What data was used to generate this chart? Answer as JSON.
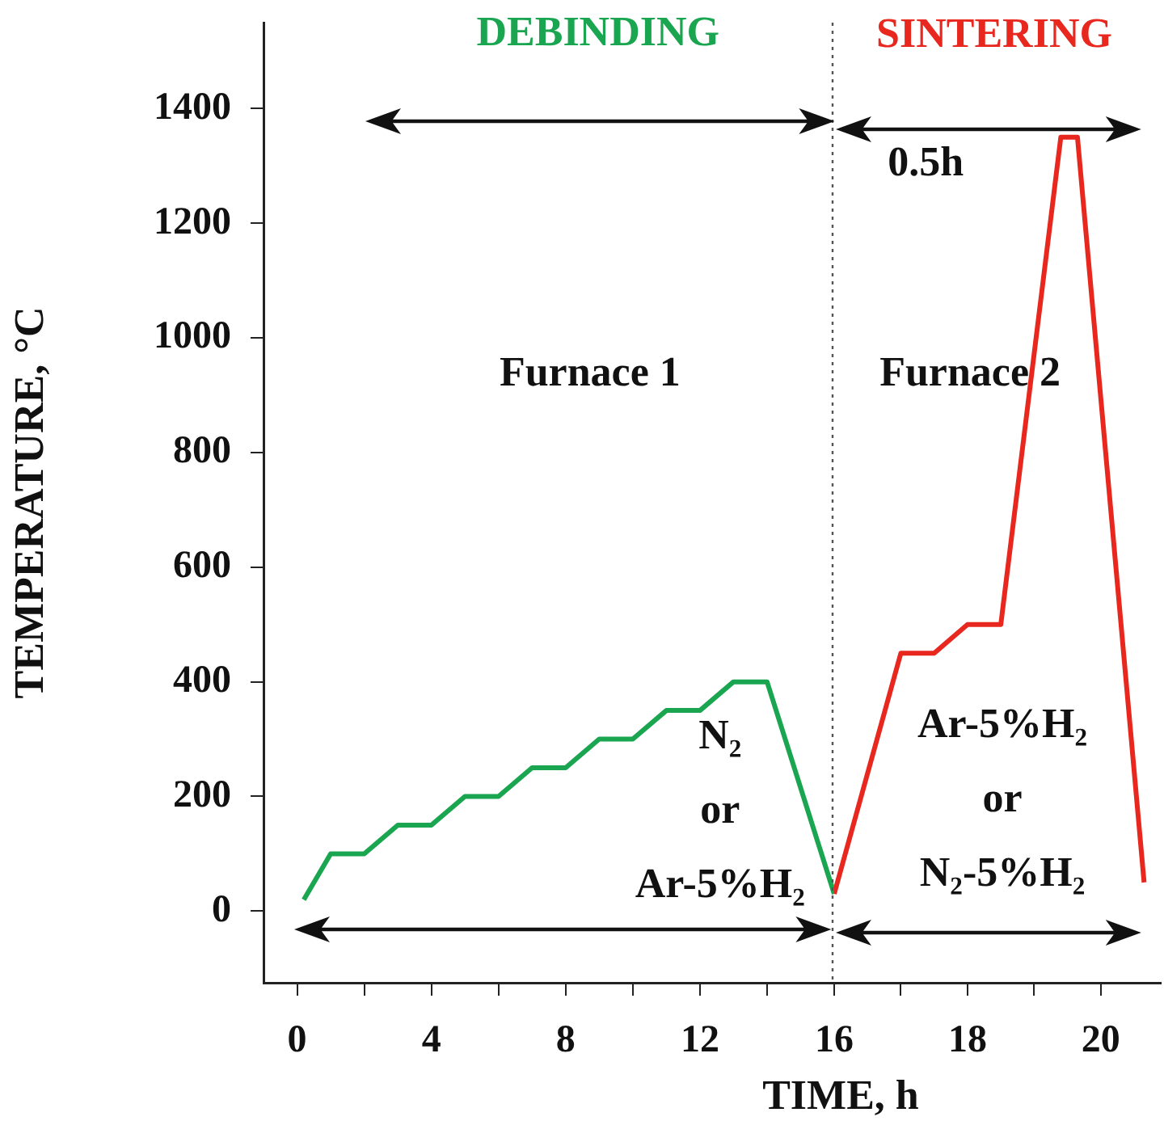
{
  "chart_data": [
    {
      "type": "line",
      "xlabel": "TIME, h",
      "ylabel": "TEMPERATURE, °C",
      "xlim": [
        -1,
        16
      ],
      "ylim": [
        -125,
        1550
      ],
      "xticks": [
        0,
        {
          "value": 2,
          "label": null
        },
        4,
        {
          "value": 6,
          "label": null
        },
        8,
        {
          "value": 10,
          "label": null
        },
        12,
        {
          "value": 14,
          "label": null
        },
        16
      ],
      "yticks": [
        0,
        200,
        400,
        600,
        800,
        1000,
        1200,
        1400
      ],
      "grid": false,
      "legend": false,
      "marker": "none",
      "line_style": "solid",
      "series": [
        {
          "color": "#1aa550",
          "x": [
            0.2,
            1,
            2,
            3,
            4,
            5,
            6,
            7,
            8,
            9,
            10,
            11,
            12,
            13,
            14,
            16
          ],
          "values": [
            20,
            100,
            100,
            150,
            150,
            200,
            200,
            250,
            250,
            300,
            300,
            350,
            350,
            400,
            400,
            30
          ]
        }
      ],
      "ref_lines": [
        {
          "axis": "x",
          "value": 16,
          "color": "#555555",
          "line_style": "dotted"
        }
      ],
      "annotations": [
        "DEBINDING",
        "Furnace 1",
        "N₂\nor\nAr-5%H₂"
      ]
    },
    {
      "type": "line",
      "xlim": [
        16,
        20.9
      ],
      "ylim": [
        -125,
        1550
      ],
      "yticks": [
        0,
        200,
        400,
        600,
        800,
        1000,
        1200,
        1400
      ],
      "tick_labels": "x",
      "xticks": [
        {
          "value": 17,
          "label": null
        },
        18,
        {
          "value": 19,
          "label": null
        },
        20
      ],
      "grid": false,
      "legend": false,
      "marker": "none",
      "line_style": "solid",
      "series": [
        {
          "color": "#e8281e",
          "x": [
            16,
            17,
            17.5,
            18,
            18.5,
            19.4,
            19.65,
            20.65
          ],
          "values": [
            30,
            450,
            450,
            500,
            500,
            1350,
            1350,
            50
          ]
        }
      ],
      "annotations": [
        "SINTERING",
        "0.5h",
        "Furnace 2",
        "Ar-5%H₂\nor\nN₂-5%H₂"
      ]
    }
  ]
}
